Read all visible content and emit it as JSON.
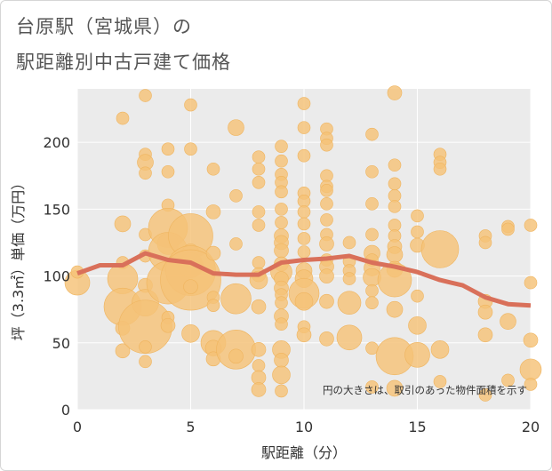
{
  "title_line1": "台原駅（宮城県）の",
  "title_line2": "駅距離別中古戸建て価格",
  "note": "円の大きさは、取引のあった物件面積を示す",
  "colors": {
    "bubble": "#f5c278",
    "bubble_edge": "#efb45e",
    "line": "#d9705a",
    "plot_bg": "#ebebeb",
    "grid": "#ffffff"
  },
  "chart_data": {
    "type": "scatter",
    "xlabel": "駅距離（分）",
    "ylabel": "坪（3.3㎡）単価（万円）",
    "xlim": [
      0,
      20
    ],
    "ylim": [
      0,
      240
    ],
    "xticks": [
      0,
      5,
      10,
      15,
      20
    ],
    "yticks": [
      0,
      50,
      100,
      150,
      200
    ],
    "trend_line": {
      "x": [
        0,
        1,
        2,
        3,
        4,
        5,
        6,
        7,
        8,
        9,
        10,
        11,
        12,
        13,
        14,
        15,
        16,
        17,
        18,
        19,
        20
      ],
      "y": [
        102,
        108,
        108,
        117,
        112,
        110,
        102,
        101,
        101,
        110,
        112,
        113,
        115,
        110,
        107,
        103,
        97,
        93,
        84,
        79,
        78
      ]
    },
    "points": [
      {
        "x": 0,
        "y": 95,
        "s": 14
      },
      {
        "x": 0,
        "y": 103,
        "s": 7
      },
      {
        "x": 2,
        "y": 218,
        "s": 7
      },
      {
        "x": 2,
        "y": 139,
        "s": 9
      },
      {
        "x": 2,
        "y": 110,
        "s": 7
      },
      {
        "x": 2,
        "y": 98,
        "s": 17
      },
      {
        "x": 2,
        "y": 77,
        "s": 21
      },
      {
        "x": 2,
        "y": 61,
        "s": 8
      },
      {
        "x": 2,
        "y": 44,
        "s": 8
      },
      {
        "x": 3,
        "y": 235,
        "s": 7
      },
      {
        "x": 3,
        "y": 191,
        "s": 7
      },
      {
        "x": 3,
        "y": 185,
        "s": 9
      },
      {
        "x": 3,
        "y": 177,
        "s": 7
      },
      {
        "x": 3,
        "y": 131,
        "s": 7
      },
      {
        "x": 3,
        "y": 115,
        "s": 7
      },
      {
        "x": 3,
        "y": 93,
        "s": 8
      },
      {
        "x": 3,
        "y": 80,
        "s": 15
      },
      {
        "x": 3,
        "y": 62,
        "s": 30
      },
      {
        "x": 3,
        "y": 47,
        "s": 7
      },
      {
        "x": 3,
        "y": 36,
        "s": 7
      },
      {
        "x": 4,
        "y": 195,
        "s": 7
      },
      {
        "x": 4,
        "y": 178,
        "s": 7
      },
      {
        "x": 4,
        "y": 153,
        "s": 7
      },
      {
        "x": 4,
        "y": 136,
        "s": 22
      },
      {
        "x": 4,
        "y": 124,
        "s": 12
      },
      {
        "x": 4,
        "y": 118,
        "s": 22
      },
      {
        "x": 4,
        "y": 95,
        "s": 24
      },
      {
        "x": 4,
        "y": 69,
        "s": 7
      },
      {
        "x": 4,
        "y": 63,
        "s": 8
      },
      {
        "x": 5,
        "y": 228,
        "s": 7
      },
      {
        "x": 5,
        "y": 195,
        "s": 7
      },
      {
        "x": 5,
        "y": 130,
        "s": 25
      },
      {
        "x": 5,
        "y": 118,
        "s": 9
      },
      {
        "x": 5,
        "y": 108,
        "s": 14
      },
      {
        "x": 5,
        "y": 104,
        "s": 28
      },
      {
        "x": 5,
        "y": 97,
        "s": 34
      },
      {
        "x": 5,
        "y": 92,
        "s": 8
      },
      {
        "x": 5,
        "y": 57,
        "s": 10
      },
      {
        "x": 6,
        "y": 180,
        "s": 7
      },
      {
        "x": 6,
        "y": 148,
        "s": 8
      },
      {
        "x": 6,
        "y": 117,
        "s": 8
      },
      {
        "x": 6,
        "y": 84,
        "s": 7
      },
      {
        "x": 6,
        "y": 78,
        "s": 7
      },
      {
        "x": 6,
        "y": 50,
        "s": 14
      },
      {
        "x": 6,
        "y": 46,
        "s": 9
      },
      {
        "x": 6,
        "y": 38,
        "s": 8
      },
      {
        "x": 7,
        "y": 211,
        "s": 9
      },
      {
        "x": 7,
        "y": 160,
        "s": 7
      },
      {
        "x": 7,
        "y": 124,
        "s": 7
      },
      {
        "x": 7,
        "y": 83,
        "s": 17
      },
      {
        "x": 7,
        "y": 45,
        "s": 22
      },
      {
        "x": 7,
        "y": 40,
        "s": 8
      },
      {
        "x": 8,
        "y": 189,
        "s": 7
      },
      {
        "x": 8,
        "y": 180,
        "s": 7
      },
      {
        "x": 8,
        "y": 170,
        "s": 7
      },
      {
        "x": 8,
        "y": 148,
        "s": 7
      },
      {
        "x": 8,
        "y": 138,
        "s": 7
      },
      {
        "x": 8,
        "y": 110,
        "s": 7
      },
      {
        "x": 8,
        "y": 101,
        "s": 8
      },
      {
        "x": 8,
        "y": 97,
        "s": 10
      },
      {
        "x": 8,
        "y": 77,
        "s": 8
      },
      {
        "x": 8,
        "y": 45,
        "s": 8
      },
      {
        "x": 8,
        "y": 33,
        "s": 7
      },
      {
        "x": 8,
        "y": 24,
        "s": 8
      },
      {
        "x": 8,
        "y": 15,
        "s": 8
      },
      {
        "x": 9,
        "y": 197,
        "s": 7
      },
      {
        "x": 9,
        "y": 186,
        "s": 7
      },
      {
        "x": 9,
        "y": 176,
        "s": 7
      },
      {
        "x": 9,
        "y": 170,
        "s": 7
      },
      {
        "x": 9,
        "y": 163,
        "s": 7
      },
      {
        "x": 9,
        "y": 150,
        "s": 7
      },
      {
        "x": 9,
        "y": 140,
        "s": 7
      },
      {
        "x": 9,
        "y": 130,
        "s": 8
      },
      {
        "x": 9,
        "y": 125,
        "s": 8
      },
      {
        "x": 9,
        "y": 119,
        "s": 8
      },
      {
        "x": 9,
        "y": 109,
        "s": 8
      },
      {
        "x": 9,
        "y": 103,
        "s": 12
      },
      {
        "x": 9,
        "y": 98,
        "s": 8
      },
      {
        "x": 9,
        "y": 91,
        "s": 8
      },
      {
        "x": 9,
        "y": 86,
        "s": 7
      },
      {
        "x": 9,
        "y": 80,
        "s": 7
      },
      {
        "x": 9,
        "y": 70,
        "s": 8
      },
      {
        "x": 9,
        "y": 64,
        "s": 7
      },
      {
        "x": 9,
        "y": 45,
        "s": 10
      },
      {
        "x": 9,
        "y": 37,
        "s": 8
      },
      {
        "x": 9,
        "y": 26,
        "s": 10
      },
      {
        "x": 9,
        "y": 14,
        "s": 7
      },
      {
        "x": 10,
        "y": 229,
        "s": 7
      },
      {
        "x": 10,
        "y": 211,
        "s": 7
      },
      {
        "x": 10,
        "y": 190,
        "s": 7
      },
      {
        "x": 10,
        "y": 162,
        "s": 7
      },
      {
        "x": 10,
        "y": 156,
        "s": 7
      },
      {
        "x": 10,
        "y": 148,
        "s": 7
      },
      {
        "x": 10,
        "y": 139,
        "s": 7
      },
      {
        "x": 10,
        "y": 128,
        "s": 7
      },
      {
        "x": 10,
        "y": 118,
        "s": 7
      },
      {
        "x": 10,
        "y": 104,
        "s": 9
      },
      {
        "x": 10,
        "y": 98,
        "s": 10
      },
      {
        "x": 10,
        "y": 87,
        "s": 17
      },
      {
        "x": 10,
        "y": 81,
        "s": 10
      },
      {
        "x": 10,
        "y": 62,
        "s": 7
      },
      {
        "x": 10,
        "y": 56,
        "s": 8
      },
      {
        "x": 11,
        "y": 210,
        "s": 7
      },
      {
        "x": 11,
        "y": 203,
        "s": 7
      },
      {
        "x": 11,
        "y": 198,
        "s": 7
      },
      {
        "x": 11,
        "y": 175,
        "s": 7
      },
      {
        "x": 11,
        "y": 167,
        "s": 7
      },
      {
        "x": 11,
        "y": 164,
        "s": 7
      },
      {
        "x": 11,
        "y": 154,
        "s": 7
      },
      {
        "x": 11,
        "y": 142,
        "s": 7
      },
      {
        "x": 11,
        "y": 131,
        "s": 7
      },
      {
        "x": 11,
        "y": 124,
        "s": 8
      },
      {
        "x": 11,
        "y": 112,
        "s": 7
      },
      {
        "x": 11,
        "y": 107,
        "s": 8
      },
      {
        "x": 11,
        "y": 100,
        "s": 8
      },
      {
        "x": 11,
        "y": 81,
        "s": 8
      },
      {
        "x": 11,
        "y": 53,
        "s": 8
      },
      {
        "x": 12,
        "y": 125,
        "s": 7
      },
      {
        "x": 12,
        "y": 111,
        "s": 7
      },
      {
        "x": 12,
        "y": 104,
        "s": 7
      },
      {
        "x": 12,
        "y": 98,
        "s": 7
      },
      {
        "x": 12,
        "y": 80,
        "s": 13
      },
      {
        "x": 12,
        "y": 54,
        "s": 14
      },
      {
        "x": 13,
        "y": 206,
        "s": 7
      },
      {
        "x": 13,
        "y": 178,
        "s": 7
      },
      {
        "x": 13,
        "y": 154,
        "s": 7
      },
      {
        "x": 13,
        "y": 131,
        "s": 7
      },
      {
        "x": 13,
        "y": 117,
        "s": 9
      },
      {
        "x": 13,
        "y": 112,
        "s": 7
      },
      {
        "x": 13,
        "y": 106,
        "s": 9
      },
      {
        "x": 13,
        "y": 99,
        "s": 10
      },
      {
        "x": 13,
        "y": 89,
        "s": 7
      },
      {
        "x": 13,
        "y": 80,
        "s": 7
      },
      {
        "x": 13,
        "y": 46,
        "s": 7
      },
      {
        "x": 13,
        "y": 17,
        "s": 7
      },
      {
        "x": 14,
        "y": 237,
        "s": 8
      },
      {
        "x": 14,
        "y": 183,
        "s": 7
      },
      {
        "x": 14,
        "y": 169,
        "s": 7
      },
      {
        "x": 14,
        "y": 160,
        "s": 7
      },
      {
        "x": 14,
        "y": 152,
        "s": 7
      },
      {
        "x": 14,
        "y": 138,
        "s": 7
      },
      {
        "x": 14,
        "y": 130,
        "s": 7
      },
      {
        "x": 14,
        "y": 122,
        "s": 8
      },
      {
        "x": 14,
        "y": 116,
        "s": 9
      },
      {
        "x": 14,
        "y": 105,
        "s": 9
      },
      {
        "x": 14,
        "y": 97,
        "s": 19
      },
      {
        "x": 14,
        "y": 75,
        "s": 9
      },
      {
        "x": 14,
        "y": 40,
        "s": 21
      },
      {
        "x": 14,
        "y": 16,
        "s": 9
      },
      {
        "x": 15,
        "y": 145,
        "s": 7
      },
      {
        "x": 15,
        "y": 133,
        "s": 7
      },
      {
        "x": 15,
        "y": 123,
        "s": 8
      },
      {
        "x": 15,
        "y": 85,
        "s": 7
      },
      {
        "x": 15,
        "y": 63,
        "s": 10
      },
      {
        "x": 15,
        "y": 41,
        "s": 14
      },
      {
        "x": 16,
        "y": 191,
        "s": 7
      },
      {
        "x": 16,
        "y": 185,
        "s": 7
      },
      {
        "x": 16,
        "y": 180,
        "s": 7
      },
      {
        "x": 16,
        "y": 120,
        "s": 21
      },
      {
        "x": 16,
        "y": 45,
        "s": 10
      },
      {
        "x": 16,
        "y": 21,
        "s": 7
      },
      {
        "x": 18,
        "y": 130,
        "s": 7
      },
      {
        "x": 18,
        "y": 125,
        "s": 7
      },
      {
        "x": 18,
        "y": 81,
        "s": 8
      },
      {
        "x": 18,
        "y": 73,
        "s": 8
      },
      {
        "x": 18,
        "y": 56,
        "s": 8
      },
      {
        "x": 18,
        "y": 11,
        "s": 7
      },
      {
        "x": 19,
        "y": 137,
        "s": 7
      },
      {
        "x": 19,
        "y": 135,
        "s": 7
      },
      {
        "x": 19,
        "y": 66,
        "s": 9
      },
      {
        "x": 19,
        "y": 22,
        "s": 7
      },
      {
        "x": 20,
        "y": 138,
        "s": 7
      },
      {
        "x": 20,
        "y": 95,
        "s": 7
      },
      {
        "x": 20,
        "y": 52,
        "s": 8
      },
      {
        "x": 20,
        "y": 30,
        "s": 12
      },
      {
        "x": 20,
        "y": 19,
        "s": 7
      }
    ]
  }
}
